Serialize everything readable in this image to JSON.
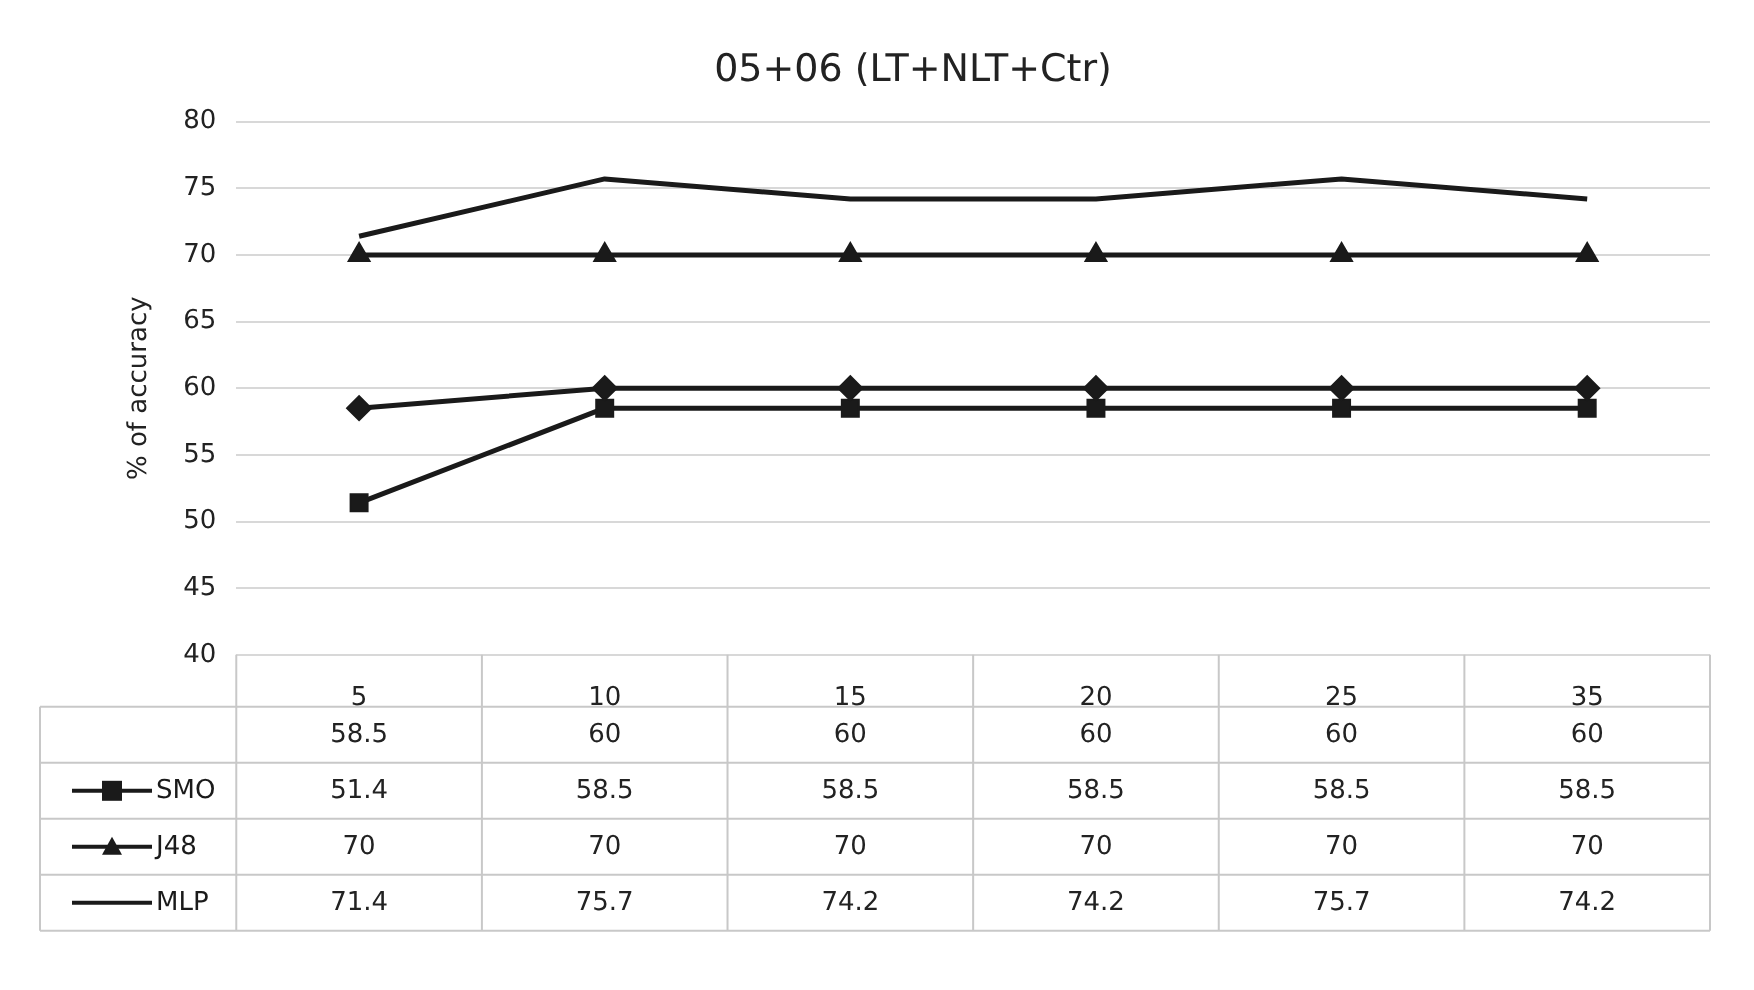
{
  "chart_data": {
    "type": "line",
    "title": "05+06 (LT+NLT+Ctr)",
    "ylabel": "% of accuracy",
    "categories": [
      "5",
      "10",
      "15",
      "20",
      "25",
      "35"
    ],
    "series": [
      {
        "color": "#1a1a1a",
        "marker": "diamond",
        "values": [
          58.5,
          60,
          60,
          60,
          60,
          60
        ]
      },
      {
        "name": "SMO",
        "color": "#1a1a1a",
        "marker": "square",
        "values": [
          51.4,
          58.5,
          58.5,
          58.5,
          58.5,
          58.5
        ]
      },
      {
        "name": "J48",
        "color": "#1a1a1a",
        "marker": "triangle",
        "values": [
          70,
          70,
          70,
          70,
          70,
          70
        ]
      },
      {
        "name": "MLP",
        "color": "#1a1a1a",
        "marker": "none",
        "values": [
          71.4,
          75.7,
          74.2,
          74.2,
          75.7,
          74.2
        ]
      }
    ],
    "ylim": [
      40,
      80
    ],
    "yticks": [
      40,
      45,
      50,
      55,
      60,
      65,
      70,
      75,
      80
    ],
    "grid": "y",
    "legend": "bottom",
    "data_labels": true
  }
}
